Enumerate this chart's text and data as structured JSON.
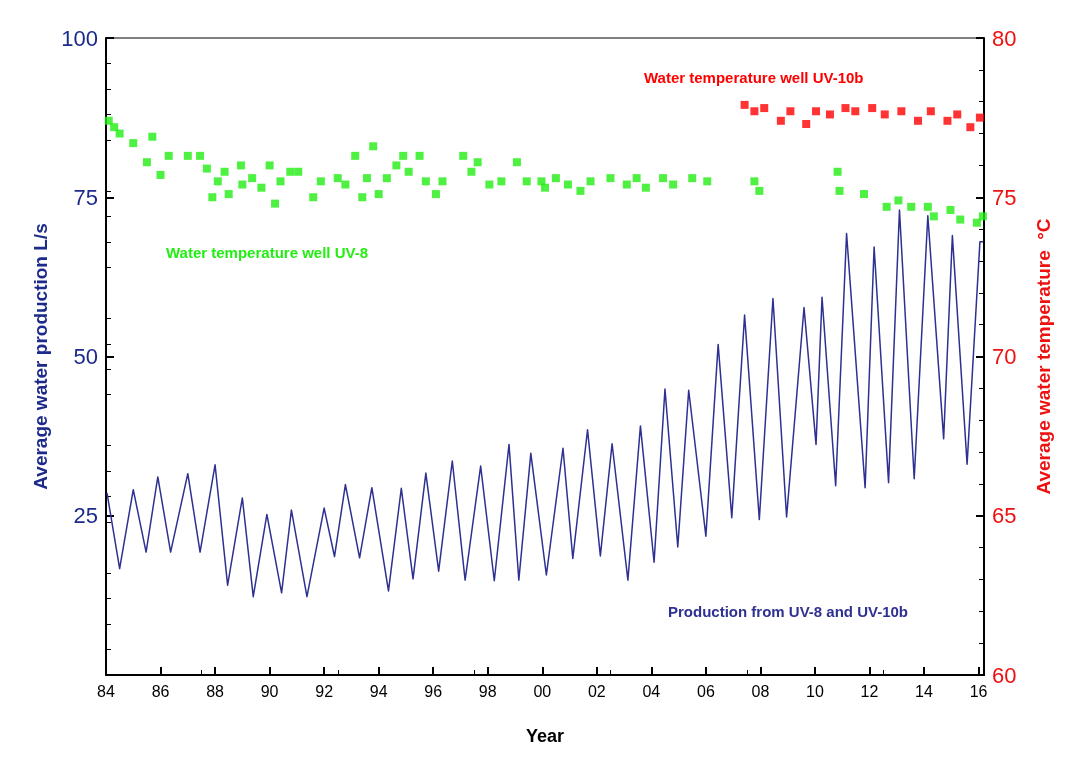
{
  "chart_data": {
    "type": "line",
    "xlabel": "Year",
    "ylabel": "Average water production L/s",
    "y2label": "Average water temperature  °C",
    "xlim": [
      1984,
      2016.2
    ],
    "xticks": [
      {
        "value": 1984,
        "label": "84"
      },
      {
        "value": 1986,
        "label": "86"
      },
      {
        "value": 1988,
        "label": "88"
      },
      {
        "value": 1990,
        "label": "90"
      },
      {
        "value": 1992,
        "label": "92"
      },
      {
        "value": 1994,
        "label": "94"
      },
      {
        "value": 1996,
        "label": "96"
      },
      {
        "value": 1998,
        "label": "98"
      },
      {
        "value": 2000,
        "label": "00"
      },
      {
        "value": 2002,
        "label": "02"
      },
      {
        "value": 2004,
        "label": "04"
      },
      {
        "value": 2006,
        "label": "06"
      },
      {
        "value": 2008,
        "label": "08"
      },
      {
        "value": 2010,
        "label": "10"
      },
      {
        "value": 2012,
        "label": "12"
      },
      {
        "value": 2014,
        "label": "14"
      },
      {
        "value": 2016,
        "label": "16"
      }
    ],
    "ylim": [
      0,
      100
    ],
    "yticks": [
      {
        "value": 0,
        "label": null
      },
      25,
      50,
      75,
      100
    ],
    "y2lim": [
      60,
      80
    ],
    "y2ticks": [
      60,
      65,
      70,
      75,
      80
    ],
    "grid": false,
    "legend": false,
    "series": [
      {
        "name": "Production from UV-8 and UV-10b",
        "color": "#2e3192",
        "line_style": "solid",
        "marker": "none",
        "x": [
          1984.04,
          1984.5,
          1985.0,
          1985.47,
          1985.9,
          1986.37,
          1987.0,
          1987.45,
          1988.0,
          1988.46,
          1989.0,
          1989.4,
          1989.9,
          1990.44,
          1990.8,
          1991.37,
          1992.0,
          1992.38,
          1992.78,
          1993.3,
          1993.75,
          1994.36,
          1994.83,
          1995.26,
          1995.73,
          1996.2,
          1996.7,
          1997.17,
          1997.74,
          1998.24,
          1998.78,
          1999.14,
          1999.58,
          2000.15,
          2000.76,
          2001.12,
          2001.66,
          2002.13,
          2002.56,
          2003.14,
          2003.6,
          2004.1,
          2004.5,
          2004.97,
          2005.37,
          2006.0,
          2006.45,
          2006.95,
          2007.42,
          2007.96,
          2008.46,
          2008.96,
          2009.6,
          2010.04,
          2010.26,
          2010.76,
          2011.16,
          2011.84,
          2012.17,
          2012.7,
          2013.1,
          2013.64,
          2014.14,
          2014.72,
          2015.04,
          2015.58,
          2016.05,
          2016.15
        ],
        "values": [
          28.5,
          16.7,
          29.1,
          19.3,
          31.1,
          19.3,
          31.6,
          19.3,
          33,
          14.1,
          27.8,
          12.3,
          25.2,
          12.9,
          25.9,
          12.3,
          26.2,
          18.6,
          29.9,
          18.4,
          29.4,
          13.2,
          29.3,
          15.1,
          31.7,
          16.3,
          33.6,
          14.9,
          32.8,
          14.8,
          36.2,
          14.9,
          34.8,
          15.7,
          35.6,
          18.3,
          38.5,
          18.7,
          36.3,
          14.9,
          39.1,
          17.7,
          44.9,
          20.1,
          44.7,
          21.8,
          51.9,
          24.7,
          56.5,
          24.4,
          59.1,
          24.8,
          57.7,
          36.2,
          59.3,
          29.7,
          69.3,
          29.4,
          67.2,
          30.2,
          73,
          30.8,
          72.1,
          37.1,
          69,
          33.1,
          68,
          68
        ]
      },
      {
        "name": "Water temperature well UV-8",
        "type": "scatter",
        "axis": "y2",
        "color": "#22ee11",
        "marker": "square",
        "x": [
          1984.1,
          1984.3,
          1984.5,
          1985.0,
          1985.5,
          1985.7,
          1986.0,
          1986.3,
          1987.0,
          1987.45,
          1987.7,
          1987.9,
          1988.1,
          1988.35,
          1988.5,
          1988.95,
          1989.0,
          1989.36,
          1989.7,
          1990.0,
          1990.2,
          1990.4,
          1990.76,
          1991.05,
          1991.6,
          1991.88,
          1992.5,
          1992.78,
          1993.14,
          1993.4,
          1993.57,
          1993.8,
          1994.0,
          1994.3,
          1994.65,
          1994.9,
          1995.1,
          1995.5,
          1995.73,
          1996.1,
          1996.34,
          1997.1,
          1997.4,
          1997.63,
          1998.06,
          1998.5,
          1999.07,
          1999.43,
          1999.97,
          2000.1,
          2000.5,
          2000.94,
          2001.4,
          2001.77,
          2002.5,
          2003.1,
          2003.46,
          2003.8,
          2004.43,
          2004.8,
          2005.5,
          2006.05,
          2007.78,
          2007.96,
          2010.83,
          2010.9,
          2011.8,
          2012.63,
          2013.06,
          2013.53,
          2014.14,
          2014.36,
          2014.97,
          2015.33,
          2015.94,
          2016.16
        ],
        "values": [
          77.4,
          77.2,
          77.0,
          76.7,
          76.1,
          76.9,
          75.7,
          76.3,
          76.3,
          76.3,
          75.9,
          75.0,
          75.5,
          75.8,
          75.1,
          76.0,
          75.4,
          75.6,
          75.3,
          76.0,
          74.8,
          75.5,
          75.8,
          75.8,
          75.0,
          75.5,
          75.6,
          75.4,
          76.3,
          75.0,
          75.6,
          76.6,
          75.1,
          75.6,
          76.0,
          76.3,
          75.8,
          76.3,
          75.5,
          75.1,
          75.5,
          76.3,
          75.8,
          76.1,
          75.4,
          75.5,
          76.1,
          75.5,
          75.5,
          75.3,
          75.6,
          75.4,
          75.2,
          75.5,
          75.6,
          75.4,
          75.6,
          75.3,
          75.6,
          75.4,
          75.6,
          75.5,
          75.5,
          75.2,
          75.8,
          75.2,
          75.1,
          74.7,
          74.9,
          74.7,
          74.7,
          74.4,
          74.6,
          74.3,
          74.2,
          74.4
        ]
      },
      {
        "name": "Water temperature well UV-10b",
        "type": "scatter",
        "axis": "y2",
        "color": "#ff0000",
        "marker": "square",
        "x": [
          2007.42,
          2007.78,
          2008.14,
          2008.75,
          2009.1,
          2009.68,
          2010.04,
          2010.55,
          2011.12,
          2011.48,
          2012.1,
          2012.56,
          2013.17,
          2013.78,
          2014.25,
          2014.86,
          2015.22,
          2015.7,
          2016.05
        ],
        "values": [
          77.9,
          77.7,
          77.8,
          77.4,
          77.7,
          77.3,
          77.7,
          77.6,
          77.8,
          77.7,
          77.8,
          77.6,
          77.7,
          77.4,
          77.7,
          77.4,
          77.6,
          77.2,
          77.5
        ]
      }
    ]
  }
}
